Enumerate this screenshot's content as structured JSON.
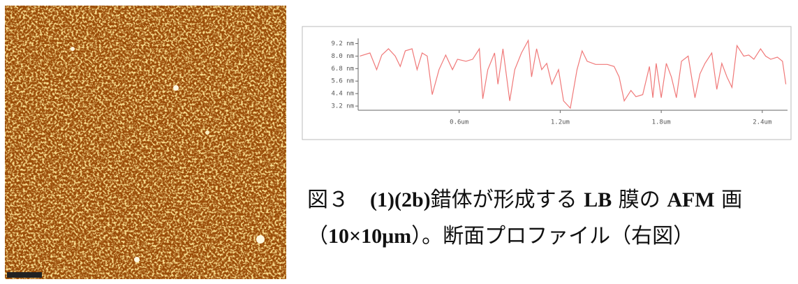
{
  "chart_data": {
    "type": "line",
    "x": [
      0.01,
      0.07,
      0.11,
      0.14,
      0.18,
      0.22,
      0.25,
      0.28,
      0.32,
      0.35,
      0.38,
      0.41,
      0.44,
      0.48,
      0.52,
      0.56,
      0.59,
      0.64,
      0.68,
      0.72,
      0.74,
      0.77,
      0.81,
      0.83,
      0.86,
      0.9,
      0.93,
      0.97,
      1.01,
      1.03,
      1.06,
      1.09,
      1.12,
      1.15,
      1.19,
      1.22,
      1.26,
      1.3,
      1.33,
      1.36,
      1.41,
      1.48,
      1.52,
      1.55,
      1.58,
      1.62,
      1.65,
      1.69,
      1.73,
      1.75,
      1.77,
      1.8,
      1.83,
      1.86,
      1.89,
      1.92,
      1.96,
      2.0,
      2.03,
      2.06,
      2.1,
      2.13,
      2.16,
      2.19,
      2.22,
      2.25,
      2.29,
      2.32,
      2.35,
      2.39,
      2.42,
      2.45,
      2.49,
      2.52,
      2.54
    ],
    "series": [
      {
        "color": "#f07878",
        "values": [
          8.0,
          8.3,
          6.7,
          8.1,
          8.7,
          8.0,
          7.0,
          8.5,
          8.7,
          6.7,
          8.3,
          8.0,
          4.3,
          6.7,
          8.1,
          6.7,
          7.7,
          7.5,
          7.7,
          8.7,
          3.9,
          6.7,
          8.3,
          5.3,
          8.7,
          3.7,
          6.7,
          8.3,
          9.5,
          6.0,
          8.7,
          6.7,
          7.3,
          5.3,
          6.7,
          3.7,
          3.0,
          6.7,
          8.5,
          7.5,
          7.2,
          7.2,
          7.0,
          6.0,
          3.7,
          4.7,
          4.1,
          4.3,
          7.0,
          4.0,
          7.3,
          4.0,
          7.3,
          6.0,
          4.0,
          7.5,
          8.0,
          4.0,
          6.3,
          7.3,
          8.3,
          4.8,
          7.3,
          6.0,
          5.0,
          9.0,
          8.0,
          8.1,
          7.7,
          8.7,
          8.0,
          7.7,
          7.9,
          7.5,
          5.3
        ]
      }
    ],
    "xlim": [
      0,
      2.55
    ],
    "ylim": [
      2.8,
      9.7
    ],
    "xticks": [
      {
        "value": 0.6,
        "label": "0.6um"
      },
      {
        "value": 1.2,
        "label": "1.2um"
      },
      {
        "value": 1.8,
        "label": "1.8um"
      },
      {
        "value": 2.4,
        "label": "2.4um"
      }
    ],
    "yticks": [
      {
        "value": 9.2,
        "label": "9.2 nm"
      },
      {
        "value": 8.0,
        "label": "8.0 nm"
      },
      {
        "value": 6.8,
        "label": "6.8 nm"
      },
      {
        "value": 5.6,
        "label": "5.6 nm"
      },
      {
        "value": 4.4,
        "label": "4.4 nm"
      },
      {
        "value": 3.2,
        "label": "3.2 nm"
      }
    ]
  },
  "caption": {
    "lines": [
      [
        {
          "text": "図３　",
          "bold": false
        },
        {
          "text": "(1)(2b)",
          "bold": true
        },
        {
          "text": "錯体が形成する ",
          "bold": false
        },
        {
          "text": "LB",
          "bold": true
        },
        {
          "text": " 膜の ",
          "bold": false
        },
        {
          "text": "AFM",
          "bold": true
        },
        {
          "text": " 画",
          "bold": false
        }
      ],
      [
        {
          "text": "（",
          "bold": false
        },
        {
          "text": "10×10μm",
          "bold": true
        },
        {
          "text": "）。断面プロファイル（右図）",
          "bold": false
        }
      ]
    ]
  }
}
